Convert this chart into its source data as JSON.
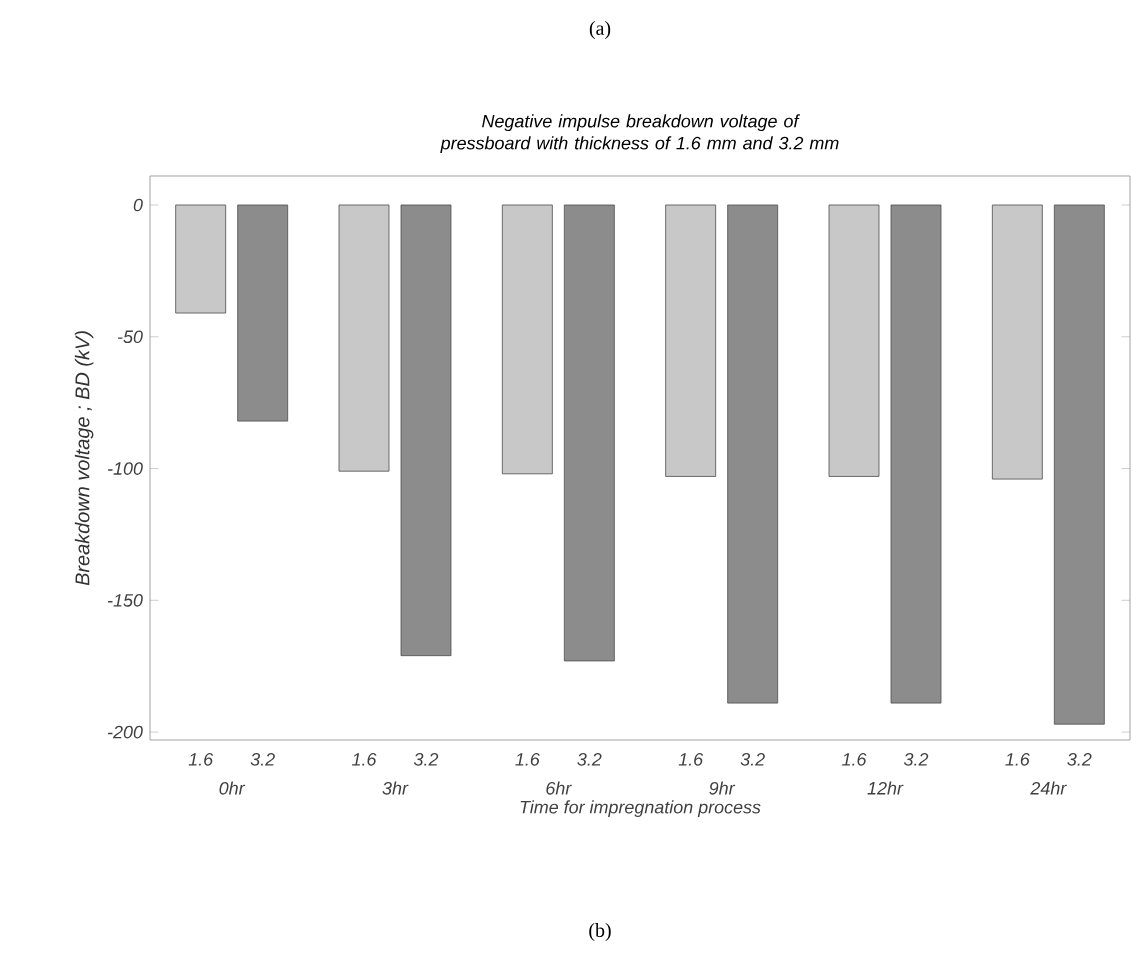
{
  "chart_data": {
    "type": "bar",
    "title": "Negative impulse breakdown voltage of pressboard with thickness of 1.6 mm and 3.2 mm",
    "xlabel": "Time for impregnation process",
    "ylabel": "Breakdown voltage ; BD (kV)",
    "categories": [
      "0hr",
      "3hr",
      "6hr",
      "9hr",
      "12hr",
      "24hr"
    ],
    "series": [
      {
        "name": "1.6",
        "color": "#c8c8c8",
        "values": [
          -41,
          -101,
          -102,
          -103,
          -103,
          -104
        ]
      },
      {
        "name": "3.2",
        "color": "#8c8c8c",
        "values": [
          -82,
          -171,
          -173,
          -189,
          -189,
          -197
        ]
      }
    ],
    "ylim": [
      -203,
      11
    ],
    "yticks": [
      -200,
      -150,
      -100,
      -50,
      0
    ],
    "annotations": [
      "(a)",
      "(b)"
    ]
  }
}
